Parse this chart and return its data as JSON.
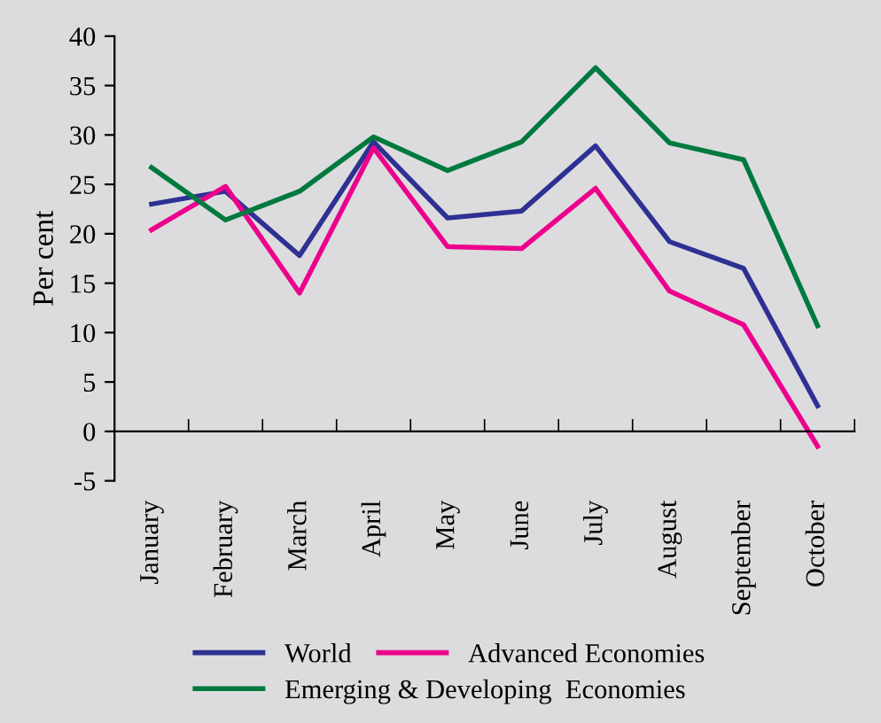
{
  "chart_data": {
    "type": "line",
    "ylabel": "Per cent",
    "categories": [
      "January",
      "February",
      "March",
      "April",
      "May",
      "June",
      "July",
      "August",
      "September",
      "October"
    ],
    "series": [
      {
        "name": "World",
        "color": "#2e3192",
        "values": [
          23,
          24.3,
          17.8,
          29.3,
          21.6,
          22.3,
          28.9,
          19.2,
          16.5,
          2.6
        ]
      },
      {
        "name": "Advanced Economies",
        "color": "#ec008c",
        "values": [
          20.4,
          24.8,
          14,
          28.7,
          18.7,
          18.5,
          24.6,
          14.2,
          10.8,
          -1.5
        ]
      },
      {
        "name": "Emerging & Developing  Economies",
        "color": "#00793f",
        "values": [
          26.7,
          21.4,
          24.3,
          29.8,
          26.4,
          29.3,
          36.8,
          29.2,
          27.5,
          10.7
        ]
      }
    ],
    "ylim": [
      -5,
      40
    ],
    "yticks": [
      -5,
      0,
      5,
      10,
      15,
      20,
      25,
      30,
      35,
      40
    ],
    "grid": false,
    "legend": "bottom",
    "marker": "none",
    "line_style": "solid"
  }
}
